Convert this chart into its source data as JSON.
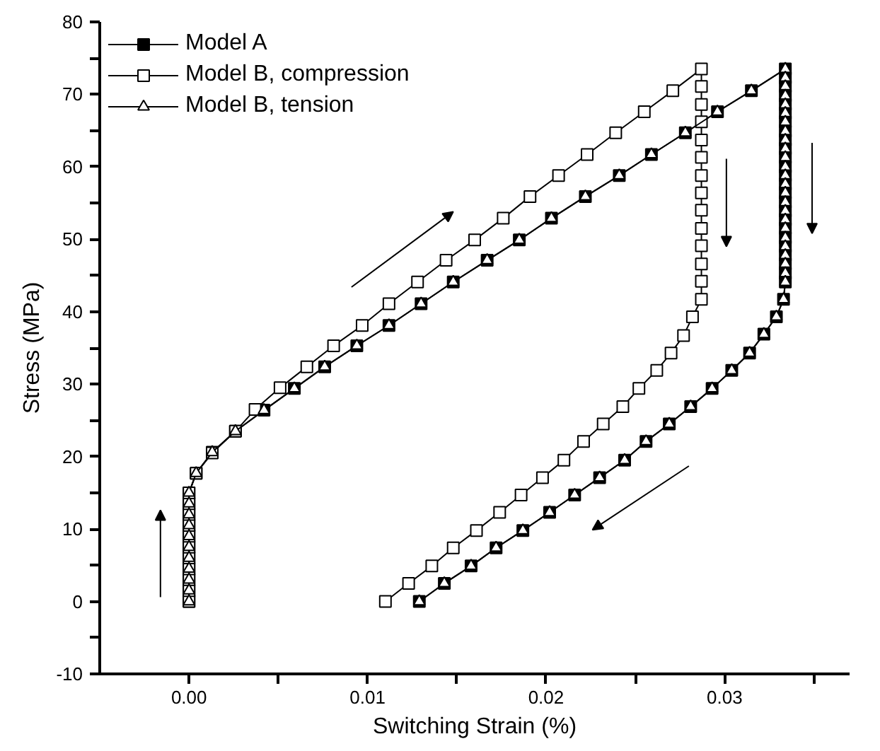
{
  "chart_data": {
    "type": "line",
    "xlabel": "Switching Strain (%)",
    "ylabel": "Stress (MPa)",
    "xlim": [
      -0.005,
      0.037
    ],
    "ylim": [
      -10,
      80
    ],
    "xticks": [
      {
        "value": 0,
        "label": "0.00"
      },
      {
        "value": 0.005,
        "label": null
      },
      {
        "value": 0.01,
        "label": "0.01"
      },
      {
        "value": 0.015,
        "label": null
      },
      {
        "value": 0.02,
        "label": "0.02"
      },
      {
        "value": 0.025,
        "label": null
      },
      {
        "value": 0.03,
        "label": "0.03"
      },
      {
        "value": 0.035,
        "label": null
      }
    ],
    "yticks": [
      -10,
      {
        "value": -5,
        "label": null
      },
      0,
      {
        "value": 5,
        "label": null
      },
      10,
      {
        "value": 15,
        "label": null
      },
      20,
      {
        "value": 25,
        "label": null
      },
      30,
      {
        "value": 35,
        "label": null
      },
      40,
      {
        "value": 45,
        "label": null
      },
      50,
      {
        "value": 55,
        "label": null
      },
      60,
      {
        "value": 65,
        "label": null
      },
      70,
      {
        "value": 75,
        "label": null
      },
      80
    ],
    "grid": false,
    "legend": "top left",
    "line_style": "solid",
    "series": [
      {
        "name": "Model A",
        "color": "#000000",
        "marker": "square",
        "x": [
          0,
          0,
          0,
          0,
          0,
          0,
          0,
          0,
          0,
          0,
          0,
          0.0004,
          0.0013,
          0.0026,
          0.0042,
          0.0059,
          0.0076,
          0.0094,
          0.0112,
          0.013,
          0.0148,
          0.0167,
          0.0185,
          0.0203,
          0.0222,
          0.0241,
          0.0259,
          0.0278,
          0.0296,
          0.0315,
          0.0334,
          0.0334,
          0.0334,
          0.0334,
          0.0334,
          0.0334,
          0.0334,
          0.0334,
          0.0334,
          0.0334,
          0.0334,
          0.0334,
          0.0334,
          0.0334,
          0.0334,
          0.0334,
          0.0334,
          0.0334,
          0.0334,
          0.0334,
          0.0334,
          0.0334,
          0.0334,
          0.0334,
          0.0334,
          0.0333,
          0.0329,
          0.0322,
          0.0314,
          0.0304,
          0.0293,
          0.0281,
          0.0269,
          0.0256,
          0.0244,
          0.023,
          0.0216,
          0.0202,
          0.0187,
          0.0172,
          0.0158,
          0.0143,
          0.0129
        ],
        "values": [
          0,
          1.5,
          3,
          4.5,
          6,
          7.5,
          9,
          10.5,
          12,
          13.5,
          15,
          17.7,
          20.6,
          23.5,
          26.4,
          29.4,
          32.4,
          35.3,
          38.1,
          41.1,
          44.1,
          47.1,
          49.9,
          52.9,
          55.9,
          58.8,
          61.7,
          64.7,
          67.6,
          70.5,
          73.5,
          72.3,
          71.1,
          69.8,
          68.6,
          67.4,
          66.2,
          64.9,
          63.7,
          62.5,
          61.3,
          60.0,
          58.8,
          57.6,
          56.4,
          55.1,
          53.9,
          52.7,
          51.5,
          50.2,
          49.0,
          47.8,
          46.6,
          45.3,
          44.1,
          41.7,
          39.3,
          36.9,
          34.3,
          31.9,
          29.4,
          26.9,
          24.5,
          22.1,
          19.5,
          17.1,
          14.7,
          12.3,
          9.8,
          7.4,
          4.9,
          2.5,
          0
        ]
      },
      {
        "name": "Model B, compression",
        "color": "#000000",
        "marker": "square",
        "x": [
          0,
          0,
          0,
          0,
          0,
          0,
          0,
          0,
          0,
          0,
          0,
          0.0004,
          0.0013,
          0.0026,
          0.0037,
          0.0051,
          0.0066,
          0.0081,
          0.0097,
          0.0112,
          0.0128,
          0.0144,
          0.016,
          0.0176,
          0.0191,
          0.0207,
          0.0223,
          0.0239,
          0.0255,
          0.0271,
          0.0287,
          0.0287,
          0.0287,
          0.0287,
          0.0287,
          0.0287,
          0.0287,
          0.0287,
          0.0287,
          0.0287,
          0.0287,
          0.0287,
          0.0287,
          0.0287,
          0.0282,
          0.0277,
          0.027,
          0.0262,
          0.0252,
          0.0243,
          0.0232,
          0.0221,
          0.021,
          0.0198,
          0.0186,
          0.0174,
          0.0161,
          0.0148,
          0.0136,
          0.0123,
          0.011
        ],
        "values": [
          0,
          1.5,
          3,
          4.5,
          6,
          7.5,
          9,
          10.5,
          12,
          13.5,
          15,
          17.7,
          20.5,
          23.5,
          26.5,
          29.5,
          32.4,
          35.3,
          38.1,
          41.1,
          44.1,
          47.1,
          49.9,
          52.9,
          55.9,
          58.8,
          61.7,
          64.7,
          67.6,
          70.5,
          73.5,
          71.1,
          68.6,
          66.2,
          63.7,
          61.3,
          58.8,
          56.4,
          54.0,
          51.5,
          49.1,
          46.6,
          44.2,
          41.7,
          39.3,
          36.7,
          34.3,
          31.9,
          29.4,
          26.9,
          24.5,
          22.1,
          19.5,
          17.1,
          14.7,
          12.3,
          9.8,
          7.4,
          4.9,
          2.5,
          0
        ]
      },
      {
        "name": "Model B, tension",
        "color": "#000000",
        "marker": "triangle",
        "x": [
          0,
          0,
          0,
          0,
          0,
          0,
          0,
          0,
          0,
          0,
          0,
          0.0004,
          0.0013,
          0.0026,
          0.0042,
          0.0059,
          0.0076,
          0.0094,
          0.0112,
          0.013,
          0.0148,
          0.0167,
          0.0185,
          0.0203,
          0.0222,
          0.0241,
          0.0259,
          0.0278,
          0.0296,
          0.0315,
          0.0334,
          0.0334,
          0.0334,
          0.0334,
          0.0334,
          0.0334,
          0.0334,
          0.0334,
          0.0334,
          0.0334,
          0.0334,
          0.0334,
          0.0334,
          0.0334,
          0.0334,
          0.0334,
          0.0334,
          0.0334,
          0.0334,
          0.0334,
          0.0334,
          0.0334,
          0.0334,
          0.0334,
          0.0334,
          0.0333,
          0.0329,
          0.0322,
          0.0314,
          0.0304,
          0.0293,
          0.0281,
          0.0269,
          0.0256,
          0.0244,
          0.023,
          0.0216,
          0.0202,
          0.0187,
          0.0172,
          0.0158,
          0.0143,
          0.0129
        ],
        "values": [
          0,
          1.5,
          3,
          4.5,
          6,
          7.5,
          9,
          10.5,
          12,
          13.5,
          15,
          17.7,
          20.6,
          23.5,
          26.4,
          29.4,
          32.4,
          35.3,
          38.1,
          41.1,
          44.1,
          47.1,
          49.9,
          52.9,
          55.9,
          58.8,
          61.7,
          64.7,
          67.6,
          70.5,
          73.5,
          72.3,
          71.1,
          69.8,
          68.6,
          67.4,
          66.2,
          64.9,
          63.7,
          62.5,
          61.3,
          60.0,
          58.8,
          57.6,
          56.4,
          55.1,
          53.9,
          52.7,
          51.5,
          50.2,
          49.0,
          47.8,
          46.6,
          45.3,
          44.1,
          41.7,
          39.3,
          36.9,
          34.3,
          31.9,
          29.4,
          26.9,
          24.5,
          22.1,
          19.5,
          17.1,
          14.7,
          12.3,
          9.8,
          7.4,
          4.9,
          2.5,
          0
        ]
      }
    ]
  }
}
